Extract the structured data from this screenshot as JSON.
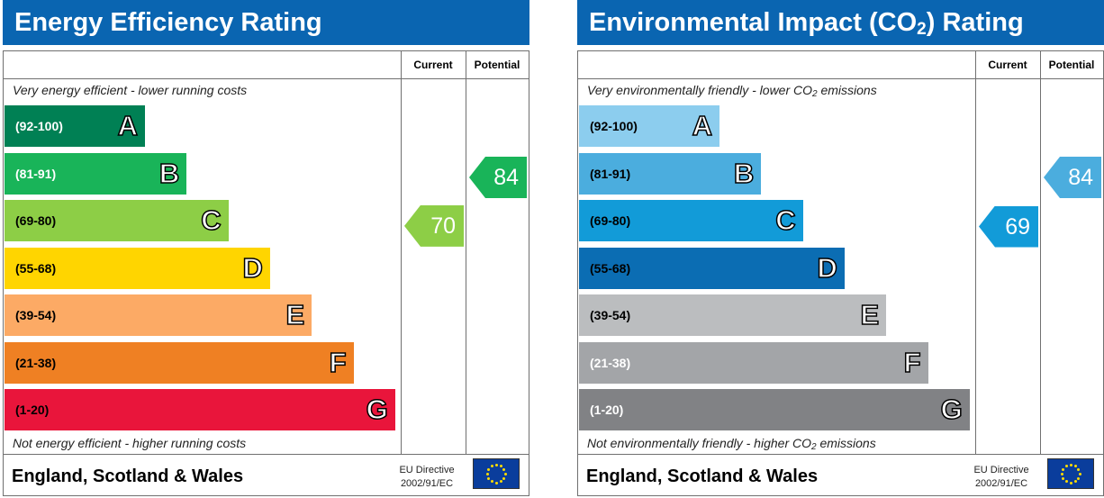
{
  "chart_data": [
    {
      "type": "table",
      "title": "Energy Efficiency Rating",
      "columns": [
        "Current",
        "Potential"
      ],
      "caption_top": "Very energy efficient - lower running costs",
      "caption_bottom": "Not energy efficient - higher running costs",
      "bands": [
        {
          "letter": "A",
          "range": "(92-100)",
          "min": 92,
          "max": 100,
          "color": "#008054",
          "text_color": "#ffffff"
        },
        {
          "letter": "B",
          "range": "(81-91)",
          "min": 81,
          "max": 91,
          "color": "#19b459",
          "text_color": "#ffffff"
        },
        {
          "letter": "C",
          "range": "(69-80)",
          "min": 69,
          "max": 80,
          "color": "#8dce46",
          "text_color": "#000000"
        },
        {
          "letter": "D",
          "range": "(55-68)",
          "min": 55,
          "max": 68,
          "color": "#ffd500",
          "text_color": "#000000"
        },
        {
          "letter": "E",
          "range": "(39-54)",
          "min": 39,
          "max": 54,
          "color": "#fcaa65",
          "text_color": "#000000"
        },
        {
          "letter": "F",
          "range": "(21-38)",
          "min": 21,
          "max": 38,
          "color": "#ef8023",
          "text_color": "#000000"
        },
        {
          "letter": "G",
          "range": "(1-20)",
          "min": 1,
          "max": 20,
          "color": "#e9153b",
          "text_color": "#000000"
        }
      ],
      "current": {
        "value": 70,
        "label": "70",
        "color": "#8dce46"
      },
      "potential": {
        "value": 84,
        "label": "84",
        "color": "#19b459"
      },
      "footer": {
        "country": "England, Scotland & Wales",
        "directive_line1": "EU Directive",
        "directive_line2": "2002/91/EC"
      }
    },
    {
      "type": "table",
      "title_prefix": "Environmental Impact (CO",
      "title_sub": "2",
      "title_suffix": ") Rating",
      "columns": [
        "Current",
        "Potential"
      ],
      "caption_top_prefix": "Very environmentally friendly - lower CO",
      "caption_top_sub": "2",
      "caption_top_suffix": " emissions",
      "caption_bottom_prefix": "Not environmentally friendly - higher CO",
      "caption_bottom_sub": "2",
      "caption_bottom_suffix": " emissions",
      "bands": [
        {
          "letter": "A",
          "range": "(92-100)",
          "min": 92,
          "max": 100,
          "color": "#8ccdee",
          "text_color": "#000000"
        },
        {
          "letter": "B",
          "range": "(81-91)",
          "min": 81,
          "max": 91,
          "color": "#4badde",
          "text_color": "#000000"
        },
        {
          "letter": "C",
          "range": "(69-80)",
          "min": 69,
          "max": 80,
          "color": "#129bd8",
          "text_color": "#000000"
        },
        {
          "letter": "D",
          "range": "(55-68)",
          "min": 55,
          "max": 68,
          "color": "#0b6db3",
          "text_color": "#000000"
        },
        {
          "letter": "E",
          "range": "(39-54)",
          "min": 39,
          "max": 54,
          "color": "#bbbdbf",
          "text_color": "#000000"
        },
        {
          "letter": "F",
          "range": "(21-38)",
          "min": 21,
          "max": 38,
          "color": "#a3a5a8",
          "text_color": "#ffffff"
        },
        {
          "letter": "G",
          "range": "(1-20)",
          "min": 1,
          "max": 20,
          "color": "#818285",
          "text_color": "#ffffff"
        }
      ],
      "current": {
        "value": 69,
        "label": "69",
        "color": "#129bd8"
      },
      "potential": {
        "value": 84,
        "label": "84",
        "color": "#4badde"
      },
      "footer": {
        "country": "England, Scotland & Wales",
        "directive_line1": "EU Directive",
        "directive_line2": "2002/91/EC"
      }
    }
  ],
  "colors": {
    "title_bar": "#0a65b1",
    "eu_flag": "#0a3d9c",
    "eu_stars": "#ffdd00"
  },
  "icons": {
    "eu_flag": "eu-flag-icon"
  }
}
